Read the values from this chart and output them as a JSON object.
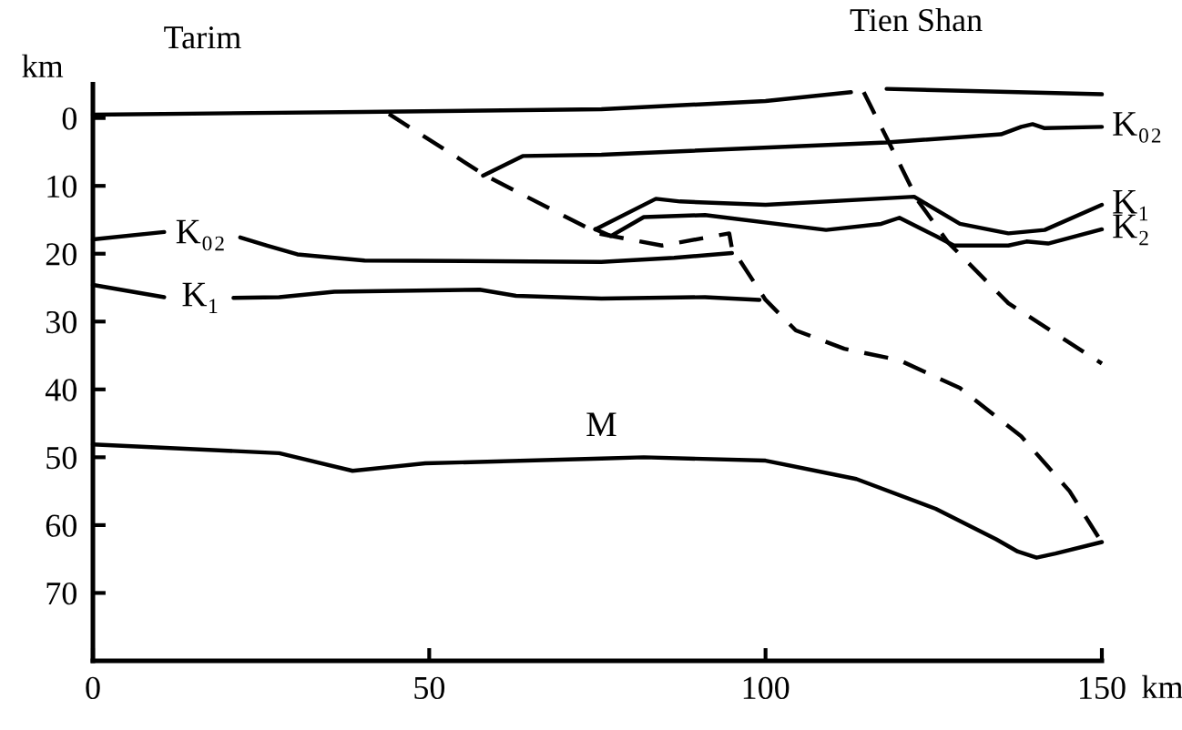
{
  "chart_data": {
    "type": "line",
    "xlabel": "km",
    "ylabel": "km",
    "xlim": [
      0,
      150
    ],
    "ylim": [
      80,
      -5
    ],
    "xticks": [
      0,
      50,
      100,
      150
    ],
    "yticks": [
      0,
      10,
      20,
      30,
      40,
      50,
      60,
      70
    ],
    "grid": false,
    "legend": false,
    "marker": "none",
    "series": [
      {
        "color": "#000000",
        "line_style": "solid",
        "x": [
          0,
          40,
          75.6,
          100,
          112.7,
          115,
          118,
          150
        ],
        "values": [
          -0.5,
          -0.9,
          -1.3,
          -2.5,
          -3.8,
          null,
          -4.3,
          -3.5
        ]
      },
      {
        "name": "K₀₂",
        "color": "#000000",
        "line_style": "solid",
        "x": [
          58,
          63.9,
          75.6,
          118,
          135,
          138,
          139.7,
          141.5,
          150
        ],
        "values": [
          8.5,
          5.6,
          5.4,
          3.6,
          2.4,
          1.3,
          0.9,
          1.5,
          1.3
        ]
      },
      {
        "name": "K₀₂",
        "color": "#000000",
        "line_style": "solid",
        "x": [
          0,
          10.6,
          16,
          21.9,
          25.9,
          30.4,
          40.4,
          75.6,
          86.4,
          95
        ],
        "values": [
          17.9,
          16.8,
          null,
          17.6,
          18.8,
          20.1,
          21,
          21.2,
          20.6,
          19.9
        ]
      },
      {
        "name": "K₁",
        "color": "#000000",
        "line_style": "solid",
        "x": [
          0,
          10.6,
          16,
          20.9,
          27.7,
          35.9,
          57.5,
          62.9,
          75.6,
          91,
          99.1
        ],
        "values": [
          24.6,
          26.4,
          null,
          26.5,
          26.4,
          25.6,
          25.3,
          26.2,
          26.6,
          26.4,
          26.8
        ]
      },
      {
        "name": "M",
        "color": "#000000",
        "line_style": "solid",
        "x": [
          0,
          27.7,
          38.6,
          49.4,
          75.6,
          81.9,
          100,
          113.5,
          125.3,
          134.3,
          137.5,
          140.3,
          143.1,
          150
        ],
        "values": [
          48.1,
          49.4,
          52,
          50.9,
          50.2,
          50,
          50.5,
          53.2,
          57.6,
          62.1,
          63.9,
          64.8,
          64.2,
          62.5
        ]
      },
      {
        "name": "K₁",
        "color": "#000000",
        "line_style": "solid",
        "x": [
          74.7,
          83.7,
          87.3,
          100,
          122.1,
          128.9,
          136.1,
          141.5,
          150
        ],
        "values": [
          16.4,
          11.9,
          12.3,
          12.8,
          11.6,
          15.6,
          17,
          16.5,
          12.8
        ]
      },
      {
        "name": "K₂",
        "color": "#000000",
        "line_style": "solid",
        "x": [
          74.7,
          77,
          81.9,
          91,
          109,
          117.2,
          119.9,
          125.3,
          128,
          136.1,
          138.8,
          142,
          150
        ],
        "values": [
          16.4,
          17.4,
          14.6,
          14.3,
          16.5,
          15.6,
          14.7,
          17.4,
          18.8,
          18.8,
          18.2,
          18.5,
          16.4
        ]
      },
      {
        "color": "#000000",
        "line_style": "dashed",
        "x": [
          44,
          58.4,
          75.1,
          84.6,
          94.6,
          95,
          100,
          104.5,
          111.7,
          119.9,
          128.9,
          138,
          145.2,
          149.7
        ],
        "values": [
          -0.6,
          8.5,
          17,
          18.8,
          17,
          19.2,
          26.8,
          31.3,
          34,
          35.7,
          39.8,
          46.9,
          55,
          62.1
        ]
      },
      {
        "color": "#000000",
        "line_style": "dashed",
        "x": [
          114.6,
          118.1,
          122.6,
          127.1,
          136.1,
          150
        ],
        "values": [
          -3.8,
          3.1,
          12.1,
          18.3,
          27.3,
          36.2
        ]
      }
    ],
    "annotations": [
      "Tarim",
      "Tien Shan"
    ]
  }
}
